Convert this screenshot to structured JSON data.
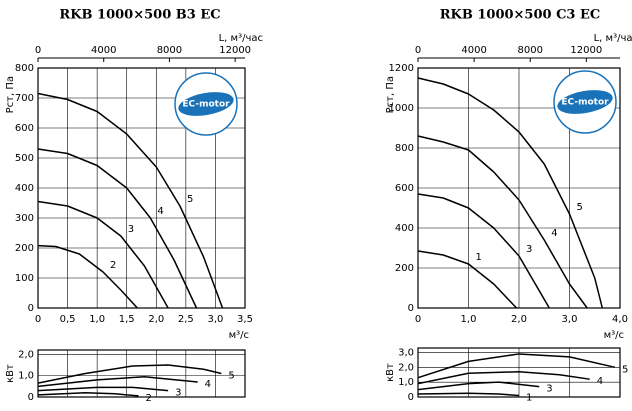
{
  "chart_data": [
    {
      "type": "line",
      "title": "RKB 1000×500 B3 EC",
      "annotation": "EC-motor",
      "x_label": "м³/с",
      "y_label": "Рст, Па",
      "x2_label": "L, м³/час",
      "xlim": [
        0,
        3.5
      ],
      "xticks": [
        0,
        {
          "value": 0.5,
          "label": "0,5"
        },
        {
          "value": 1,
          "label": "1,0"
        },
        {
          "value": 1.5,
          "label": "1,5"
        },
        {
          "value": 2,
          "label": "2,0"
        },
        {
          "value": 2.5,
          "label": "2,5"
        },
        {
          "value": 3,
          "label": "3,0"
        },
        {
          "value": 3.5,
          "label": "3,5"
        }
      ],
      "x2lim": [
        0,
        12600
      ],
      "x2ticks": [
        0,
        4000,
        8000,
        12000
      ],
      "ylim": [
        0,
        800
      ],
      "yticks": [
        0,
        100,
        200,
        300,
        400,
        500,
        600,
        700,
        800
      ],
      "grid": true,
      "series": [
        {
          "name": "2",
          "color": "#000000",
          "x": [
            0,
            0.3,
            0.7,
            1.1,
            1.4,
            1.68
          ],
          "values": [
            208,
            205,
            180,
            120,
            60,
            0
          ]
        },
        {
          "name": "3",
          "color": "#000000",
          "x": [
            0,
            0.5,
            1.0,
            1.4,
            1.8,
            2.2
          ],
          "values": [
            355,
            340,
            300,
            240,
            140,
            0
          ]
        },
        {
          "name": "4",
          "color": "#000000",
          "x": [
            0,
            0.5,
            1.0,
            1.5,
            1.9,
            2.3,
            2.68
          ],
          "values": [
            530,
            515,
            475,
            400,
            300,
            160,
            0
          ]
        },
        {
          "name": "5",
          "color": "#000000",
          "x": [
            0,
            0.5,
            1.0,
            1.5,
            2.0,
            2.4,
            2.8,
            3.12
          ],
          "values": [
            715,
            695,
            655,
            580,
            470,
            340,
            170,
            0
          ]
        }
      ]
    },
    {
      "type": "line",
      "y_label": "кВт",
      "xlim": [
        0,
        3.5
      ],
      "ylim": [
        0,
        2.2
      ],
      "yticks": [
        0,
        {
          "value": 1,
          "label": "1,0"
        },
        {
          "value": 2,
          "label": "2,0"
        }
      ],
      "grid": true,
      "series": [
        {
          "name": "2",
          "color": "#000000",
          "x": [
            0,
            0.8,
            1.3,
            1.7
          ],
          "values": [
            0.1,
            0.2,
            0.15,
            0.05
          ]
        },
        {
          "name": "3",
          "color": "#000000",
          "x": [
            0,
            1.0,
            1.6,
            2.2
          ],
          "values": [
            0.3,
            0.45,
            0.45,
            0.3
          ]
        },
        {
          "name": "4",
          "color": "#000000",
          "x": [
            0,
            1.0,
            1.8,
            2.7
          ],
          "values": [
            0.5,
            0.8,
            0.95,
            0.7
          ]
        },
        {
          "name": "5",
          "color": "#000000",
          "x": [
            0,
            0.8,
            1.6,
            2.2,
            2.8,
            3.1
          ],
          "values": [
            0.65,
            1.1,
            1.45,
            1.5,
            1.3,
            1.1
          ]
        }
      ]
    },
    {
      "type": "line",
      "title": "RKB 1000×500 C3 EC",
      "annotation": "EC-motor",
      "x_label": "м³/с",
      "y_label": "Рст, Па",
      "x2_label": "L, м³/час",
      "xlim": [
        0,
        4
      ],
      "xticks": [
        0,
        {
          "value": 1,
          "label": "1,0"
        },
        {
          "value": 2,
          "label": "2,0"
        },
        {
          "value": 3,
          "label": "3,0"
        },
        {
          "value": 4,
          "label": "4,0"
        }
      ],
      "x2lim": [
        0,
        14400
      ],
      "x2ticks": [
        0,
        4000,
        8000,
        12000
      ],
      "ylim": [
        0,
        1200
      ],
      "yticks": [
        0,
        200,
        400,
        600,
        800,
        1000,
        1200
      ],
      "grid": true,
      "series": [
        {
          "name": "1",
          "color": "#000000",
          "x": [
            0,
            0.5,
            1.0,
            1.5,
            1.95
          ],
          "values": [
            285,
            265,
            220,
            120,
            0
          ]
        },
        {
          "name": "3",
          "color": "#000000",
          "x": [
            0,
            0.5,
            1.0,
            1.5,
            2.0,
            2.3,
            2.6
          ],
          "values": [
            570,
            550,
            500,
            400,
            260,
            130,
            0
          ]
        },
        {
          "name": "4",
          "color": "#000000",
          "x": [
            0,
            0.5,
            1.0,
            1.5,
            2.0,
            2.5,
            3.0,
            3.35
          ],
          "values": [
            860,
            830,
            790,
            680,
            540,
            340,
            120,
            0
          ]
        },
        {
          "name": "5",
          "color": "#000000",
          "x": [
            0,
            0.5,
            1.0,
            1.5,
            2.0,
            2.5,
            3.0,
            3.5,
            3.65
          ],
          "values": [
            1150,
            1120,
            1070,
            990,
            880,
            720,
            470,
            150,
            0
          ]
        }
      ]
    },
    {
      "type": "line",
      "y_label": "кВт",
      "xlim": [
        0,
        4
      ],
      "ylim": [
        0,
        3.3
      ],
      "yticks": [
        0,
        {
          "value": 1,
          "label": "1,0"
        },
        {
          "value": 2,
          "label": "2,0"
        },
        {
          "value": 3,
          "label": "3,0"
        }
      ],
      "grid": true,
      "series": [
        {
          "name": "1",
          "color": "#000000",
          "x": [
            0,
            1.0,
            1.6,
            2.0
          ],
          "values": [
            0.2,
            0.25,
            0.2,
            0.1
          ]
        },
        {
          "name": "3",
          "color": "#000000",
          "x": [
            0,
            1.0,
            1.6,
            2.4
          ],
          "values": [
            0.5,
            0.9,
            1.0,
            0.7
          ]
        },
        {
          "name": "4",
          "color": "#000000",
          "x": [
            0,
            1.0,
            2.0,
            2.8,
            3.4
          ],
          "values": [
            0.9,
            1.6,
            1.7,
            1.5,
            1.2
          ]
        },
        {
          "name": "5",
          "color": "#000000",
          "x": [
            0,
            1.0,
            2.0,
            3.0,
            3.9
          ],
          "values": [
            1.3,
            2.4,
            2.9,
            2.7,
            2.0
          ]
        }
      ]
    }
  ]
}
